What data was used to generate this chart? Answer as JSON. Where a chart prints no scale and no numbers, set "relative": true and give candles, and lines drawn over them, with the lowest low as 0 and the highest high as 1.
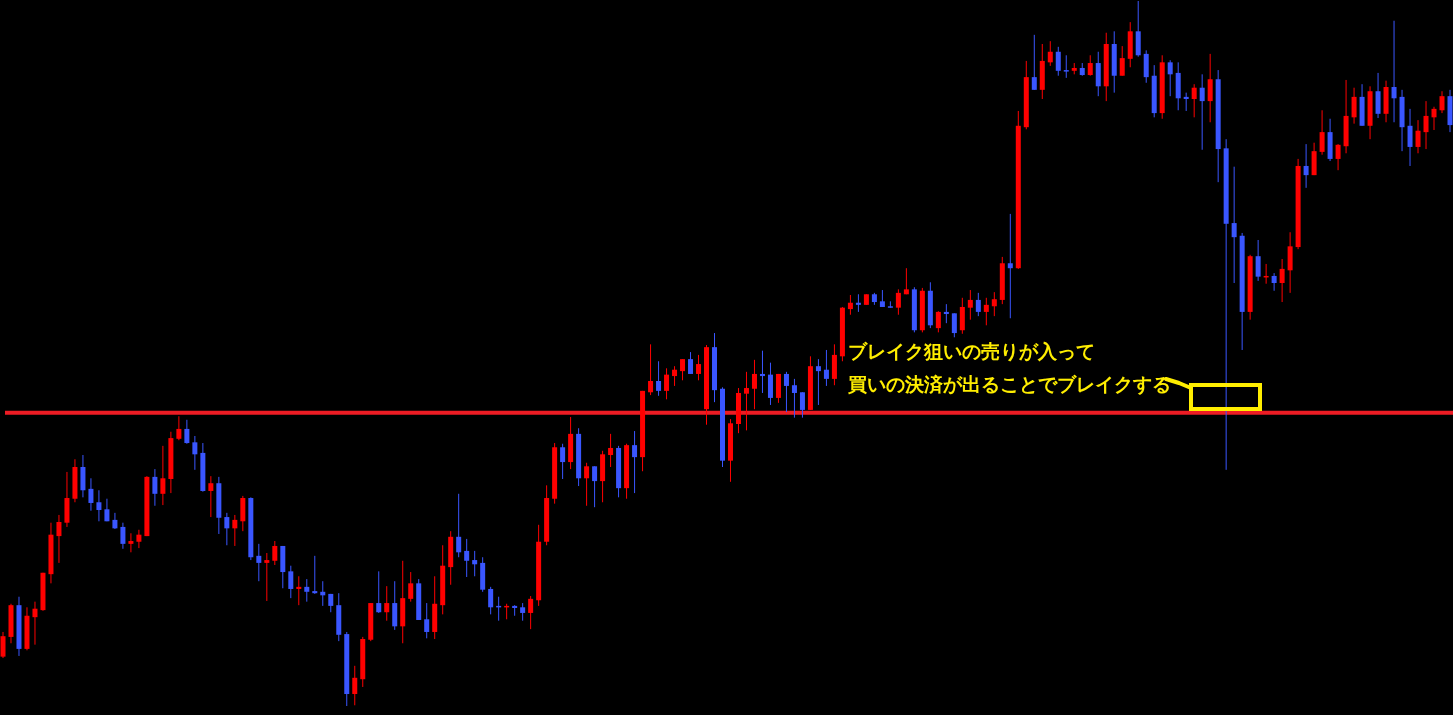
{
  "chart_data": {
    "type": "candlestick",
    "relative": true,
    "categories": [
      null,
      null,
      null,
      null,
      null,
      null,
      null,
      null,
      null,
      null,
      null,
      null,
      null,
      null,
      null,
      null,
      null,
      null,
      null,
      null,
      null,
      null,
      null,
      null,
      null,
      null,
      null,
      null,
      null,
      null,
      null,
      null,
      null,
      null,
      null,
      null,
      null,
      null,
      null,
      null,
      null,
      null,
      null,
      null,
      null,
      null,
      null,
      null,
      null,
      null,
      null,
      null,
      null,
      null,
      null,
      null,
      null,
      null,
      null,
      null,
      null,
      null,
      null,
      null,
      null,
      null,
      null,
      null,
      null,
      null,
      null,
      null,
      null,
      null,
      null,
      null,
      null,
      null,
      null,
      null,
      null,
      null,
      null,
      null,
      null,
      null,
      null,
      null,
      null,
      null,
      null,
      null,
      null,
      null,
      null,
      null,
      null,
      null,
      null,
      null,
      null,
      null,
      null,
      null,
      null,
      null,
      null,
      null,
      null,
      null,
      null,
      null,
      null,
      null,
      null,
      null,
      null,
      null,
      null,
      null,
      null,
      null,
      null,
      null,
      null,
      null,
      null,
      null,
      null,
      null,
      null,
      null,
      null,
      null,
      null,
      null,
      null,
      null,
      null,
      null,
      null,
      null,
      null,
      null,
      null,
      null,
      null,
      null,
      null,
      null,
      null,
      null,
      null,
      null,
      null,
      null,
      null,
      null,
      null,
      null,
      null,
      null,
      null,
      null,
      null,
      null,
      null,
      null,
      null,
      null,
      null,
      null,
      null,
      null,
      null,
      null,
      null,
      null,
      null,
      null,
      null,
      null
    ],
    "ohlc": [
      [
        0.07,
        0.105,
        0.068,
        0.099
      ],
      [
        0.098,
        0.145,
        0.089,
        0.143
      ],
      [
        0.143,
        0.155,
        0.071,
        0.081
      ],
      [
        0.081,
        0.14,
        0.079,
        0.128
      ],
      [
        0.126,
        0.148,
        0.087,
        0.138
      ],
      [
        0.136,
        0.189,
        0.135,
        0.189
      ],
      [
        0.187,
        0.26,
        0.174,
        0.243
      ],
      [
        0.241,
        0.271,
        0.203,
        0.261
      ],
      [
        0.26,
        0.332,
        0.254,
        0.295
      ],
      [
        0.294,
        0.35,
        0.289,
        0.339
      ],
      [
        0.339,
        0.356,
        0.296,
        0.306
      ],
      [
        0.308,
        0.323,
        0.277,
        0.288
      ],
      [
        0.289,
        0.306,
        0.262,
        0.278
      ],
      [
        0.279,
        0.294,
        0.262,
        0.262
      ],
      [
        0.264,
        0.274,
        0.251,
        0.252
      ],
      [
        0.254,
        0.26,
        0.223,
        0.23
      ],
      [
        0.23,
        0.245,
        0.218,
        0.234
      ],
      [
        0.233,
        0.25,
        0.224,
        0.243
      ],
      [
        0.241,
        0.326,
        0.241,
        0.325
      ],
      [
        0.325,
        0.336,
        0.284,
        0.301
      ],
      [
        0.301,
        0.369,
        0.285,
        0.323
      ],
      [
        0.322,
        0.389,
        0.302,
        0.38
      ],
      [
        0.379,
        0.411,
        0.377,
        0.393
      ],
      [
        0.393,
        0.406,
        0.372,
        0.373
      ],
      [
        0.374,
        0.383,
        0.335,
        0.357
      ],
      [
        0.359,
        0.373,
        0.304,
        0.305
      ],
      [
        0.305,
        0.326,
        0.268,
        0.316
      ],
      [
        0.316,
        0.325,
        0.244,
        0.267
      ],
      [
        0.268,
        0.274,
        0.228,
        0.252
      ],
      [
        0.252,
        0.271,
        0.227,
        0.264
      ],
      [
        0.262,
        0.298,
        0.248,
        0.295
      ],
      [
        0.295,
        0.296,
        0.207,
        0.211
      ],
      [
        0.213,
        0.23,
        0.177,
        0.203
      ],
      [
        0.203,
        0.217,
        0.149,
        0.207
      ],
      [
        0.206,
        0.234,
        0.2,
        0.227
      ],
      [
        0.227,
        0.227,
        0.167,
        0.19
      ],
      [
        0.191,
        0.199,
        0.153,
        0.166
      ],
      [
        0.166,
        0.184,
        0.143,
        0.169
      ],
      [
        0.169,
        0.18,
        0.148,
        0.162
      ],
      [
        0.163,
        0.213,
        0.159,
        0.16
      ],
      [
        0.162,
        0.177,
        0.142,
        0.157
      ],
      [
        0.159,
        0.159,
        0.133,
        0.142
      ],
      [
        0.143,
        0.16,
        0.092,
        0.101
      ],
      [
        0.102,
        0.105,
        0,
        0.017
      ],
      [
        0.017,
        0.057,
        0.001,
        0.04
      ],
      [
        0.038,
        0.098,
        0.027,
        0.095
      ],
      [
        0.094,
        0.146,
        0.092,
        0.146
      ],
      [
        0.146,
        0.191,
        0.132,
        0.133
      ],
      [
        0.133,
        0.17,
        0.121,
        0.146
      ],
      [
        0.146,
        0.177,
        0.108,
        0.113
      ],
      [
        0.113,
        0.206,
        0.089,
        0.153
      ],
      [
        0.152,
        0.19,
        0.148,
        0.174
      ],
      [
        0.174,
        0.18,
        0.122,
        0.122
      ],
      [
        0.123,
        0.146,
        0.096,
        0.105
      ],
      [
        0.105,
        0.184,
        0.095,
        0.145
      ],
      [
        0.143,
        0.228,
        0.13,
        0.199
      ],
      [
        0.197,
        0.248,
        0.172,
        0.24
      ],
      [
        0.24,
        0.301,
        0.211,
        0.218
      ],
      [
        0.22,
        0.237,
        0.183,
        0.206
      ],
      [
        0.207,
        0.22,
        0.184,
        0.201
      ],
      [
        0.203,
        0.211,
        0.162,
        0.165
      ],
      [
        0.166,
        0.169,
        0.13,
        0.14
      ],
      [
        0.142,
        0.155,
        0.121,
        0.14
      ],
      [
        0.14,
        0.145,
        0.123,
        0.142
      ],
      [
        0.142,
        0.143,
        0.128,
        0.139
      ],
      [
        0.14,
        0.146,
        0.121,
        0.132
      ],
      [
        0.132,
        0.156,
        0.109,
        0.152
      ],
      [
        0.15,
        0.257,
        0.142,
        0.233
      ],
      [
        0.233,
        0.313,
        0.228,
        0.295
      ],
      [
        0.294,
        0.373,
        0.287,
        0.367
      ],
      [
        0.367,
        0.372,
        0.322,
        0.346
      ],
      [
        0.346,
        0.41,
        0.336,
        0.386
      ],
      [
        0.386,
        0.394,
        0.312,
        0.323
      ],
      [
        0.323,
        0.345,
        0.284,
        0.34
      ],
      [
        0.34,
        0.34,
        0.282,
        0.319
      ],
      [
        0.319,
        0.362,
        0.289,
        0.357
      ],
      [
        0.356,
        0.386,
        0.339,
        0.366
      ],
      [
        0.366,
        0.369,
        0.296,
        0.309
      ],
      [
        0.309,
        0.372,
        0.294,
        0.37
      ],
      [
        0.37,
        0.39,
        0.302,
        0.353
      ],
      [
        0.353,
        0.447,
        0.333,
        0.447
      ],
      [
        0.445,
        0.513,
        0.441,
        0.461
      ],
      [
        0.461,
        0.489,
        0.44,
        0.447
      ],
      [
        0.447,
        0.479,
        0.435,
        0.47
      ],
      [
        0.468,
        0.482,
        0.454,
        0.477
      ],
      [
        0.475,
        0.492,
        0.462,
        0.492
      ],
      [
        0.492,
        0.502,
        0.471,
        0.471
      ],
      [
        0.471,
        0.498,
        0.462,
        0.485
      ],
      [
        0.421,
        0.512,
        0.399,
        0.509
      ],
      [
        0.509,
        0.529,
        0.431,
        0.448
      ],
      [
        0.45,
        0.452,
        0.339,
        0.348
      ],
      [
        0.348,
        0.407,
        0.318,
        0.401
      ],
      [
        0.4,
        0.451,
        0.387,
        0.444
      ],
      [
        0.443,
        0.474,
        0.391,
        0.451
      ],
      [
        0.45,
        0.491,
        0.421,
        0.471
      ],
      [
        0.471,
        0.504,
        0.444,
        0.468
      ],
      [
        0.47,
        0.487,
        0.427,
        0.437
      ],
      [
        0.437,
        0.471,
        0.43,
        0.471
      ],
      [
        0.471,
        0.474,
        0.417,
        0.454
      ],
      [
        0.455,
        0.464,
        0.409,
        0.444
      ],
      [
        0.445,
        0.445,
        0.409,
        0.42
      ],
      [
        0.42,
        0.496,
        0.42,
        0.482
      ],
      [
        0.482,
        0.492,
        0.427,
        0.475
      ],
      [
        0.477,
        0.505,
        0.454,
        0.464
      ],
      [
        0.464,
        0.513,
        0.455,
        0.498
      ],
      [
        0.496,
        0.566,
        0.489,
        0.565
      ],
      [
        0.563,
        0.583,
        0.555,
        0.572
      ],
      [
        0.572,
        0.584,
        0.559,
        0.569
      ],
      [
        0.569,
        0.584,
        0.569,
        0.584
      ],
      [
        0.584,
        0.586,
        0.569,
        0.573
      ],
      [
        0.574,
        0.59,
        0.566,
        0.566
      ],
      [
        0.567,
        0.574,
        0.565,
        0.565
      ],
      [
        0.565,
        0.591,
        0.555,
        0.586
      ],
      [
        0.584,
        0.621,
        0.584,
        0.591
      ],
      [
        0.591,
        0.594,
        0.53,
        0.533
      ],
      [
        0.533,
        0.593,
        0.53,
        0.589
      ],
      [
        0.589,
        0.601,
        0.536,
        0.54
      ],
      [
        0.536,
        0.56,
        0.53,
        0.559
      ],
      [
        0.559,
        0.57,
        0.543,
        0.556
      ],
      [
        0.557,
        0.557,
        0.523,
        0.529
      ],
      [
        0.533,
        0.579,
        0.528,
        0.566
      ],
      [
        0.565,
        0.59,
        0.548,
        0.576
      ],
      [
        0.576,
        0.586,
        0.553,
        0.559
      ],
      [
        0.559,
        0.579,
        0.54,
        0.569
      ],
      [
        0.567,
        0.587,
        0.553,
        0.577
      ],
      [
        0.576,
        0.637,
        0.57,
        0.628
      ],
      [
        0.628,
        0.698,
        0.55,
        0.621
      ],
      [
        0.621,
        0.844,
        0.62,
        0.823
      ],
      [
        0.821,
        0.915,
        0.818,
        0.892
      ],
      [
        0.892,
        0.952,
        0.874,
        0.874
      ],
      [
        0.874,
        0.939,
        0.861,
        0.915
      ],
      [
        0.913,
        0.943,
        0.908,
        0.928
      ],
      [
        0.928,
        0.935,
        0.894,
        0.901
      ],
      [
        0.902,
        0.923,
        0.891,
        0.901
      ],
      [
        0.901,
        0.912,
        0.896,
        0.905
      ],
      [
        0.905,
        0.912,
        0.894,
        0.895
      ],
      [
        0.895,
        0.923,
        0.894,
        0.912
      ],
      [
        0.912,
        0.928,
        0.865,
        0.879
      ],
      [
        0.879,
        0.955,
        0.858,
        0.939
      ],
      [
        0.939,
        0.957,
        0.87,
        0.894
      ],
      [
        0.894,
        0.936,
        0.894,
        0.919
      ],
      [
        0.918,
        0.97,
        0.906,
        0.957
      ],
      [
        0.957,
        1,
        0.921,
        0.923
      ],
      [
        0.925,
        0.93,
        0.884,
        0.892
      ],
      [
        0.894,
        0.909,
        0.835,
        0.841
      ],
      [
        0.841,
        0.923,
        0.833,
        0.913
      ],
      [
        0.913,
        0.916,
        0.865,
        0.896
      ],
      [
        0.898,
        0.913,
        0.845,
        0.862
      ],
      [
        0.864,
        0.87,
        0.844,
        0.861
      ],
      [
        0.861,
        0.882,
        0.835,
        0.877
      ],
      [
        0.877,
        0.896,
        0.789,
        0.858
      ],
      [
        0.858,
        0.925,
        0.828,
        0.889
      ],
      [
        0.889,
        0.902,
        0.743,
        0.79
      ],
      [
        0.791,
        0.804,
        0.335,
        0.684
      ],
      [
        0.685,
        0.765,
        0.6,
        0.665
      ],
      [
        0.667,
        0.671,
        0.505,
        0.559
      ],
      [
        0.559,
        0.64,
        0.548,
        0.638
      ],
      [
        0.638,
        0.661,
        0.603,
        0.609
      ],
      [
        0.609,
        0.627,
        0.599,
        0.61
      ],
      [
        0.61,
        0.614,
        0.589,
        0.6
      ],
      [
        0.6,
        0.634,
        0.573,
        0.62
      ],
      [
        0.618,
        0.672,
        0.586,
        0.652
      ],
      [
        0.651,
        0.776,
        0.648,
        0.766
      ],
      [
        0.766,
        0.797,
        0.735,
        0.753
      ],
      [
        0.753,
        0.799,
        0.753,
        0.787
      ],
      [
        0.786,
        0.845,
        0.782,
        0.814
      ],
      [
        0.814,
        0.833,
        0.773,
        0.776
      ],
      [
        0.776,
        0.797,
        0.76,
        0.796
      ],
      [
        0.794,
        0.888,
        0.784,
        0.837
      ],
      [
        0.835,
        0.877,
        0.826,
        0.864
      ],
      [
        0.864,
        0.882,
        0.823,
        0.823
      ],
      [
        0.823,
        0.879,
        0.804,
        0.872
      ],
      [
        0.872,
        0.898,
        0.834,
        0.84
      ],
      [
        0.84,
        0.887,
        0.828,
        0.878
      ],
      [
        0.878,
        0.972,
        0.828,
        0.862
      ],
      [
        0.864,
        0.874,
        0.787,
        0.821
      ],
      [
        0.823,
        0.847,
        0.766,
        0.793
      ],
      [
        0.793,
        0.831,
        0.784,
        0.816
      ],
      [
        0.814,
        0.858,
        0.79,
        0.837
      ],
      [
        0.835,
        0.85,
        0.817,
        0.847
      ],
      [
        0.845,
        0.872,
        0.841,
        0.865
      ],
      [
        0.865,
        0.874,
        0.814,
        0.824
      ]
    ],
    "colors": [
      "#ff0000",
      "#ff0000",
      "#3a56ff",
      "#ff0000",
      "#ff0000",
      "#ff0000",
      "#ff0000",
      "#ff0000",
      "#ff0000",
      "#ff0000",
      "#3a56ff",
      "#3a56ff",
      "#3a56ff",
      "#3a56ff",
      "#3a56ff",
      "#3a56ff",
      "#ff0000",
      "#ff0000",
      "#ff0000",
      "#3a56ff",
      "#ff0000",
      "#ff0000",
      "#ff0000",
      "#3a56ff",
      "#3a56ff",
      "#3a56ff",
      "#ff0000",
      "#3a56ff",
      "#3a56ff",
      "#ff0000",
      "#ff0000",
      "#3a56ff",
      "#3a56ff",
      "#ff0000",
      "#ff0000",
      "#3a56ff",
      "#3a56ff",
      "#ff0000",
      "#3a56ff",
      "#3a56ff",
      "#3a56ff",
      "#3a56ff",
      "#3a56ff",
      "#3a56ff",
      "#ff0000",
      "#ff0000",
      "#ff0000",
      "#3a56ff",
      "#ff0000",
      "#3a56ff",
      "#ff0000",
      "#ff0000",
      "#3a56ff",
      "#3a56ff",
      "#ff0000",
      "#ff0000",
      "#ff0000",
      "#3a56ff",
      "#3a56ff",
      "#3a56ff",
      "#3a56ff",
      "#3a56ff",
      "#3a56ff",
      "#ff0000",
      "#3a56ff",
      "#3a56ff",
      "#ff0000",
      "#ff0000",
      "#ff0000",
      "#ff0000",
      "#3a56ff",
      "#ff0000",
      "#3a56ff",
      "#ff0000",
      "#3a56ff",
      "#ff0000",
      "#ff0000",
      "#3a56ff",
      "#ff0000",
      "#3a56ff",
      "#ff0000",
      "#ff0000",
      "#3a56ff",
      "#ff0000",
      "#ff0000",
      "#ff0000",
      "#3a56ff",
      "#ff0000",
      "#ff0000",
      "#3a56ff",
      "#3a56ff",
      "#ff0000",
      "#ff0000",
      "#ff0000",
      "#ff0000",
      "#3a56ff",
      "#3a56ff",
      "#ff0000",
      "#3a56ff",
      "#3a56ff",
      "#3a56ff",
      "#ff0000",
      "#3a56ff",
      "#3a56ff",
      "#ff0000",
      "#ff0000",
      "#ff0000",
      "#3a56ff",
      "#ff0000",
      "#3a56ff",
      "#3a56ff",
      "#3a56ff",
      "#ff0000",
      "#ff0000",
      "#3a56ff",
      "#ff0000",
      "#3a56ff",
      "#ff0000",
      "#3a56ff",
      "#3a56ff",
      "#ff0000",
      "#ff0000",
      "#3a56ff",
      "#ff0000",
      "#ff0000",
      "#ff0000",
      "#3a56ff",
      "#ff0000",
      "#ff0000",
      "#3a56ff",
      "#ff0000",
      "#ff0000",
      "#3a56ff",
      "#3a56ff",
      "#ff0000",
      "#3a56ff",
      "#ff0000",
      "#3a56ff",
      "#ff0000",
      "#3a56ff",
      "#ff0000",
      "#ff0000",
      "#3a56ff",
      "#3a56ff",
      "#3a56ff",
      "#ff0000",
      "#3a56ff",
      "#3a56ff",
      "#3a56ff",
      "#ff0000",
      "#3a56ff",
      "#ff0000",
      "#3a56ff",
      "#3a56ff",
      "#3a56ff",
      "#3a56ff",
      "#ff0000",
      "#3a56ff",
      "#ff0000",
      "#3a56ff",
      "#ff0000",
      "#ff0000",
      "#ff0000",
      "#3a56ff",
      "#ff0000",
      "#ff0000",
      "#3a56ff",
      "#ff0000",
      "#ff0000",
      "#ff0000",
      "#3a56ff",
      "#ff0000",
      "#3a56ff",
      "#ff0000",
      "#3a56ff",
      "#3a56ff",
      "#3a56ff",
      "#ff0000",
      "#ff0000",
      "#ff0000",
      "#ff0000",
      "#3a56ff"
    ],
    "ref_lines": [
      {
        "axis": "y",
        "value": 0.416,
        "color": "#ed1c24"
      }
    ],
    "annotations": [
      "ブレイク狙いの売りが入って",
      "買いの決済が出ることでブレイクする"
    ]
  }
}
